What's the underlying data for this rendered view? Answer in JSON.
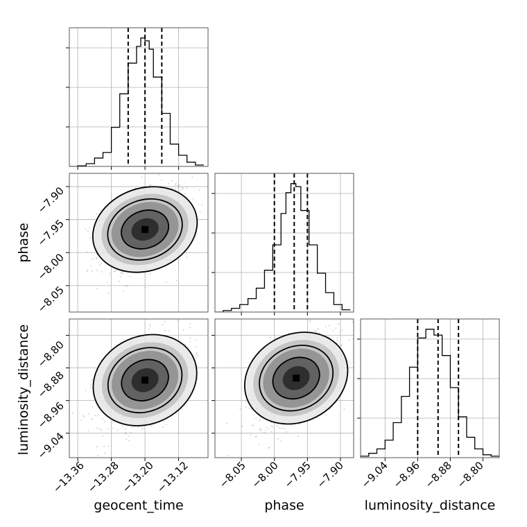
{
  "chart_data": {
    "type": "corner",
    "parameters": [
      "geocent_time",
      "phase",
      "luminosity_distance"
    ],
    "grid": true,
    "panels": [
      {
        "kind": "histogram",
        "param": "geocent_time",
        "xlim": [
          -13.38,
          -13.05
        ],
        "bin_edges": [
          -13.38,
          -13.36,
          -13.34,
          -13.32,
          -13.3,
          -13.28,
          -13.26,
          -13.24,
          -13.22,
          -13.21,
          -13.2,
          -13.19,
          -13.18,
          -13.16,
          -13.14,
          -13.12,
          -13.1,
          -13.08,
          -13.06
        ],
        "counts": [
          0.0,
          0.004,
          0.02,
          0.06,
          0.1,
          0.28,
          0.52,
          0.74,
          0.86,
          0.92,
          0.9,
          0.84,
          0.64,
          0.38,
          0.16,
          0.08,
          0.03,
          0.01
        ],
        "quantiles": [
          -13.24,
          -13.2,
          -13.16
        ],
        "xticks": [
          -13.36,
          -13.28,
          -13.2,
          -13.12
        ]
      },
      {
        "kind": "histogram",
        "param": "phase",
        "xlim": [
          -8.09,
          -7.88
        ],
        "bin_edges": [
          -8.09,
          -8.0775,
          -8.065,
          -8.0525,
          -8.04,
          -8.0275,
          -8.015,
          -8.0025,
          -7.99,
          -7.9825,
          -7.975,
          -7.9675,
          -7.96,
          -7.9475,
          -7.935,
          -7.9225,
          -7.91,
          -7.8975,
          -7.885
        ],
        "counts": [
          0.0,
          0.01,
          0.025,
          0.05,
          0.09,
          0.16,
          0.28,
          0.45,
          0.66,
          0.8,
          0.86,
          0.84,
          0.68,
          0.45,
          0.26,
          0.13,
          0.05,
          0.015
        ],
        "quantiles": [
          -8.0,
          -7.97,
          -7.95
        ],
        "xticks": [
          -8.05,
          -8.0,
          -7.95,
          -7.9
        ]
      },
      {
        "kind": "histogram",
        "param": "luminosity_distance",
        "xlim": [
          -9.1,
          -8.76
        ],
        "bin_edges": [
          -9.1,
          -9.08,
          -9.06,
          -9.04,
          -9.02,
          -9.0,
          -8.98,
          -8.96,
          -8.94,
          -8.92,
          -8.9,
          -8.88,
          -8.86,
          -8.84,
          -8.82,
          -8.8,
          -8.78,
          -8.76
        ],
        "counts": [
          0.01,
          0.03,
          0.06,
          0.12,
          0.24,
          0.42,
          0.62,
          0.82,
          0.88,
          0.84,
          0.7,
          0.48,
          0.28,
          0.14,
          0.06,
          0.02,
          0.01
        ],
        "quantiles": [
          -8.96,
          -8.91,
          -8.86
        ],
        "xticks": [
          -9.04,
          -8.96,
          -8.88,
          -8.8
        ]
      },
      {
        "kind": "density2d",
        "x": "geocent_time",
        "y": "phase",
        "xlim": [
          -13.38,
          -13.05
        ],
        "ylim": [
          -8.09,
          -7.88
        ],
        "center": [
          -13.2,
          -7.965
        ],
        "spread": [
          0.055,
          0.035
        ],
        "correlation": 0.4,
        "yticks": [
          -7.9,
          -7.95,
          -8.0,
          -8.05
        ]
      },
      {
        "kind": "density2d",
        "x": "geocent_time",
        "y": "luminosity_distance",
        "xlim": [
          -13.38,
          -13.05
        ],
        "ylim": [
          -9.1,
          -8.76
        ],
        "center": [
          -13.2,
          -8.91
        ],
        "spread": [
          0.055,
          0.06
        ],
        "correlation": 0.5,
        "yticks": [
          -8.8,
          -8.88,
          -8.96,
          -9.04
        ]
      },
      {
        "kind": "density2d",
        "x": "phase",
        "y": "luminosity_distance",
        "xlim": [
          -8.09,
          -7.88
        ],
        "ylim": [
          -9.1,
          -8.76
        ],
        "center": [
          -7.967,
          -8.905
        ],
        "spread": [
          0.035,
          0.06
        ],
        "correlation": 0.55
      }
    ],
    "labels": {
      "x": [
        "geocent_time",
        "phase",
        "luminosity_distance"
      ],
      "y": [
        "phase",
        "luminosity_distance"
      ]
    },
    "tick_labels": {
      "geocent_time": [
        "−13.36",
        "−13.28",
        "−13.20",
        "−13.12"
      ],
      "phase": [
        "−8.05",
        "−8.00",
        "−7.95",
        "−7.90"
      ],
      "phase_y": [
        "−7.90",
        "−7.95",
        "−8.00",
        "−8.05"
      ],
      "luminosity_distance": [
        "−9.04",
        "−8.96",
        "−8.88",
        "−8.80"
      ],
      "luminosity_distance_y": [
        "−8.80",
        "−8.88",
        "−8.96",
        "−9.04"
      ]
    },
    "colors": {
      "line": "#000000",
      "points": "#8c8c8c",
      "grid": "#b0b0b0"
    }
  }
}
